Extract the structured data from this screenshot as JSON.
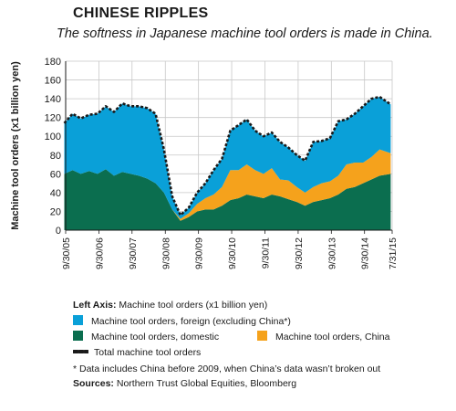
{
  "title": "CHINESE RIPPLES",
  "subtitle": "The softness in Japanese machine tool orders is made in China.",
  "legend": {
    "left_axis_bold": "Left Axis:",
    "left_axis_text": "Machine tool orders (x1 billion yen)",
    "foreign": "Machine tool orders, foreign (excluding China*)",
    "domestic": "Machine tool orders, domestic",
    "china": "Machine tool orders, China",
    "total": "Total machine tool orders",
    "note": "* Data includes China before 2009, when China’s data wasn’t broken out",
    "sources_bold": "Sources:",
    "sources_text": "Northern Trust Global Equities, Bloomberg"
  },
  "colors": {
    "foreign": "#0aa0d8",
    "domestic": "#0b6e4f",
    "china": "#f5a21c",
    "total": "#1a1a1a",
    "grid": "#c8c8c8"
  },
  "chart_data": {
    "type": "area",
    "stacked": true,
    "ylabel": "Machine tool orders (x1 billion yen)",
    "ylim": [
      0,
      180
    ],
    "yticks": [
      0,
      20,
      40,
      60,
      80,
      100,
      120,
      140,
      160,
      180
    ],
    "grid": true,
    "x_start": "2005-09-30",
    "x_end": "2015-07-31",
    "xtick_labels": [
      "9/30/05",
      "9/30/06",
      "9/30/07",
      "9/30/08",
      "9/30/09",
      "9/30/10",
      "9/30/11",
      "9/30/12",
      "9/30/13",
      "9/30/14",
      "7/31/15"
    ],
    "x": [
      "2005-09",
      "2005-12",
      "2006-03",
      "2006-06",
      "2006-09",
      "2006-12",
      "2007-03",
      "2007-06",
      "2007-09",
      "2007-12",
      "2008-03",
      "2008-06",
      "2008-09",
      "2008-12",
      "2009-03",
      "2009-06",
      "2009-09",
      "2009-12",
      "2010-03",
      "2010-06",
      "2010-09",
      "2010-12",
      "2011-03",
      "2011-06",
      "2011-09",
      "2011-12",
      "2012-03",
      "2012-06",
      "2012-09",
      "2012-12",
      "2013-03",
      "2013-06",
      "2013-09",
      "2013-12",
      "2014-03",
      "2014-06",
      "2014-09",
      "2014-12",
      "2015-03",
      "2015-07"
    ],
    "series": [
      {
        "name": "Machine tool orders, domestic",
        "values": [
          60,
          64,
          60,
          63,
          60,
          65,
          58,
          62,
          60,
          58,
          55,
          50,
          40,
          22,
          10,
          14,
          20,
          22,
          22,
          26,
          32,
          34,
          38,
          36,
          34,
          38,
          36,
          33,
          30,
          26,
          30,
          32,
          34,
          38,
          44,
          46,
          50,
          54,
          58,
          60
        ]
      },
      {
        "name": "Machine tool orders, China",
        "values": [
          0,
          0,
          0,
          0,
          0,
          0,
          0,
          0,
          0,
          0,
          0,
          0,
          0,
          0,
          2,
          4,
          8,
          12,
          16,
          20,
          32,
          30,
          32,
          28,
          26,
          28,
          18,
          20,
          16,
          14,
          16,
          18,
          18,
          20,
          26,
          26,
          22,
          24,
          28,
          22
        ]
      },
      {
        "name": "Machine tool orders, foreign (excluding China*)",
        "values": [
          54,
          60,
          59,
          60,
          64,
          67,
          68,
          73,
          72,
          74,
          75,
          74,
          46,
          14,
          4,
          6,
          12,
          16,
          26,
          30,
          42,
          48,
          48,
          42,
          40,
          38,
          40,
          35,
          34,
          34,
          48,
          45,
          46,
          58,
          48,
          52,
          60,
          62,
          56,
          52
        ]
      }
    ],
    "total_values": [
      114,
      124,
      119,
      123,
      124,
      132,
      126,
      135,
      132,
      132,
      130,
      124,
      86,
      36,
      16,
      24,
      40,
      50,
      64,
      76,
      106,
      112,
      118,
      106,
      100,
      104,
      94,
      88,
      80,
      74,
      94,
      95,
      98,
      116,
      118,
      124,
      132,
      140,
      142,
      134
    ],
    "total_series_name": "Total machine tool orders"
  }
}
